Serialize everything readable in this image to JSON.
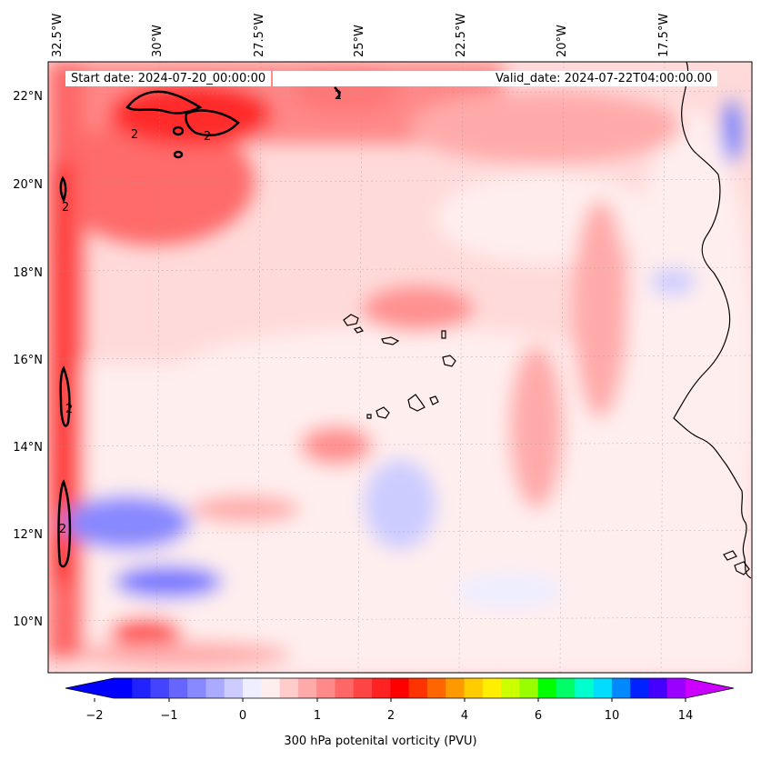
{
  "header": {
    "start_date": "Start date: 2024-07-20_00:00:00",
    "valid_date": "Valid_date: 2024-07-22T04:00:00.00"
  },
  "lon_labels": [
    "32.5°W",
    "30°W",
    "27.5°W",
    "25°W",
    "22.5°W",
    "20°W",
    "17.5°W"
  ],
  "lat_labels": [
    "22°N",
    "20°N",
    "18°N",
    "16°N",
    "14°N",
    "12°N",
    "10°N"
  ],
  "contour_label": "2",
  "colorbar": {
    "label": "300 hPa potenital vorticity (PVU)",
    "tick_labels": [
      "−2",
      "−1",
      "0",
      "1",
      "2",
      "4",
      "6",
      "10",
      "14"
    ],
    "colors": [
      "#0000ff",
      "#2222ff",
      "#4444ff",
      "#6666ff",
      "#8888ff",
      "#aaaaff",
      "#ccccff",
      "#eeeeff",
      "#ffeeee",
      "#ffcccc",
      "#ffaaaa",
      "#ff8888",
      "#ff6666",
      "#ff4444",
      "#ff2222",
      "#ff0000",
      "#ff3300",
      "#ff6600",
      "#ff9900",
      "#ffcc00",
      "#ffee00",
      "#ccff00",
      "#99ff00",
      "#00ff00",
      "#00ff66",
      "#00ffcc",
      "#00ddff",
      "#0088ff",
      "#0022ff",
      "#4400ff",
      "#9900ff"
    ],
    "under_color": "#0000ff",
    "over_color": "#cc00ff"
  }
}
